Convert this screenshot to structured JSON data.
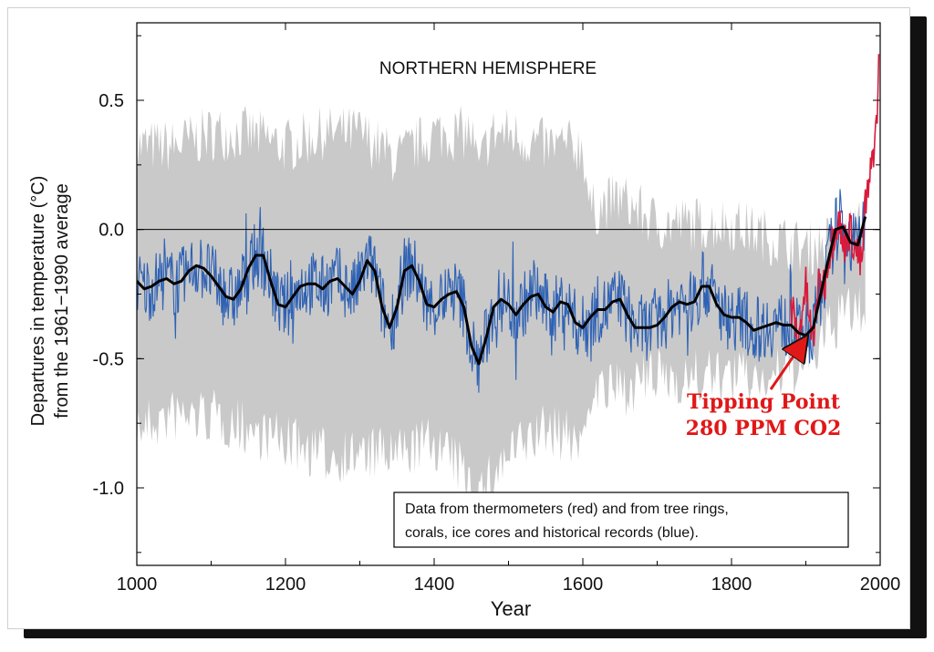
{
  "chart_data": {
    "type": "line",
    "title": "NORTHERN HEMISPHERE",
    "xlabel": "Year",
    "ylabel_line1": "Departures in temperature (°C)",
    "ylabel_line2": "from the 1961−1990 average",
    "xlim": [
      1000,
      2000
    ],
    "ylim": [
      -1.3,
      0.8
    ],
    "x_ticks": [
      "1000",
      "1200",
      "1400",
      "1600",
      "1800",
      "2000"
    ],
    "y_ticks": [
      "0.5",
      "0.0",
      "-0.5",
      "-1.0"
    ],
    "grid": false,
    "legend_text_line1": "Data from thermometers (red) and from tree rings,",
    "legend_text_line2": "corals, ice cores and historical records (blue).",
    "annotation_line1": "Tipping Point",
    "annotation_line2": "280 PPM CO2",
    "annotation_x": 1900,
    "annotation_y": -0.42,
    "colors": {
      "proxy": "#2f62b4",
      "thermometer": "#d81b3c",
      "uncertainty": "#c9c9c9",
      "smoothed": "#000000",
      "annotation": "#e01818"
    },
    "series": [
      {
        "name": "smoothed",
        "x": [
          1000,
          1010,
          1020,
          1030,
          1040,
          1050,
          1060,
          1070,
          1080,
          1090,
          1100,
          1110,
          1120,
          1130,
          1140,
          1150,
          1160,
          1170,
          1180,
          1190,
          1200,
          1210,
          1220,
          1230,
          1240,
          1250,
          1260,
          1270,
          1280,
          1290,
          1300,
          1310,
          1320,
          1330,
          1340,
          1350,
          1360,
          1370,
          1380,
          1390,
          1400,
          1410,
          1420,
          1430,
          1440,
          1450,
          1460,
          1470,
          1480,
          1490,
          1500,
          1510,
          1520,
          1530,
          1540,
          1550,
          1560,
          1570,
          1580,
          1590,
          1600,
          1610,
          1620,
          1630,
          1640,
          1650,
          1660,
          1670,
          1680,
          1690,
          1700,
          1710,
          1720,
          1730,
          1740,
          1750,
          1760,
          1770,
          1780,
          1790,
          1800,
          1810,
          1820,
          1830,
          1840,
          1850,
          1860,
          1870,
          1880,
          1890,
          1900,
          1910,
          1920,
          1930,
          1940,
          1950,
          1960,
          1970,
          1980
        ],
        "y": [
          -0.2,
          -0.23,
          -0.22,
          -0.2,
          -0.19,
          -0.21,
          -0.2,
          -0.16,
          -0.14,
          -0.15,
          -0.18,
          -0.22,
          -0.26,
          -0.27,
          -0.23,
          -0.15,
          -0.1,
          -0.1,
          -0.2,
          -0.29,
          -0.3,
          -0.26,
          -0.22,
          -0.21,
          -0.21,
          -0.23,
          -0.2,
          -0.19,
          -0.22,
          -0.25,
          -0.2,
          -0.12,
          -0.16,
          -0.3,
          -0.38,
          -0.3,
          -0.16,
          -0.14,
          -0.2,
          -0.29,
          -0.3,
          -0.27,
          -0.25,
          -0.24,
          -0.3,
          -0.45,
          -0.52,
          -0.42,
          -0.3,
          -0.27,
          -0.29,
          -0.33,
          -0.29,
          -0.26,
          -0.25,
          -0.3,
          -0.32,
          -0.28,
          -0.29,
          -0.36,
          -0.38,
          -0.34,
          -0.31,
          -0.31,
          -0.28,
          -0.27,
          -0.33,
          -0.38,
          -0.38,
          -0.38,
          -0.37,
          -0.34,
          -0.3,
          -0.28,
          -0.29,
          -0.28,
          -0.22,
          -0.22,
          -0.29,
          -0.33,
          -0.34,
          -0.34,
          -0.36,
          -0.39,
          -0.38,
          -0.37,
          -0.36,
          -0.37,
          -0.37,
          -0.4,
          -0.41,
          -0.38,
          -0.25,
          -0.12,
          0.0,
          0.01,
          -0.05,
          -0.06,
          0.05
        ]
      },
      {
        "name": "thermometer",
        "x": [
          1880,
          1885,
          1890,
          1895,
          1900,
          1905,
          1910,
          1915,
          1920,
          1925,
          1930,
          1935,
          1940,
          1945,
          1950,
          1955,
          1960,
          1965,
          1970,
          1975,
          1980,
          1985,
          1990,
          1993,
          1995,
          1998
        ],
        "y": [
          -0.3,
          -0.35,
          -0.45,
          -0.3,
          -0.22,
          -0.35,
          -0.45,
          -0.25,
          -0.2,
          -0.22,
          -0.1,
          -0.05,
          0.02,
          0.04,
          -0.08,
          -0.02,
          0.0,
          -0.06,
          -0.1,
          -0.15,
          0.1,
          0.15,
          0.3,
          0.35,
          0.4,
          0.62
        ]
      }
    ],
    "uncertainty_band": {
      "x": [
        1000,
        1050,
        1100,
        1150,
        1200,
        1250,
        1300,
        1350,
        1400,
        1450,
        1460,
        1475,
        1500,
        1550,
        1600,
        1610,
        1650,
        1700,
        1750,
        1800,
        1850,
        1900,
        1950,
        1980
      ],
      "upper": [
        0.3,
        0.3,
        0.35,
        0.35,
        0.3,
        0.35,
        0.35,
        0.25,
        0.35,
        0.35,
        0.2,
        0.35,
        0.35,
        0.3,
        0.3,
        0.05,
        0.1,
        0.0,
        0.0,
        0.0,
        -0.05,
        -0.1,
        -0.05,
        0.0
      ],
      "lower": [
        -0.75,
        -0.7,
        -0.7,
        -0.75,
        -0.8,
        -0.85,
        -0.85,
        -0.85,
        -0.8,
        -0.95,
        -1.0,
        -0.95,
        -0.85,
        -0.75,
        -0.8,
        -0.6,
        -0.6,
        -0.55,
        -0.55,
        -0.55,
        -0.55,
        -0.5,
        -0.3,
        -0.3
      ]
    }
  }
}
